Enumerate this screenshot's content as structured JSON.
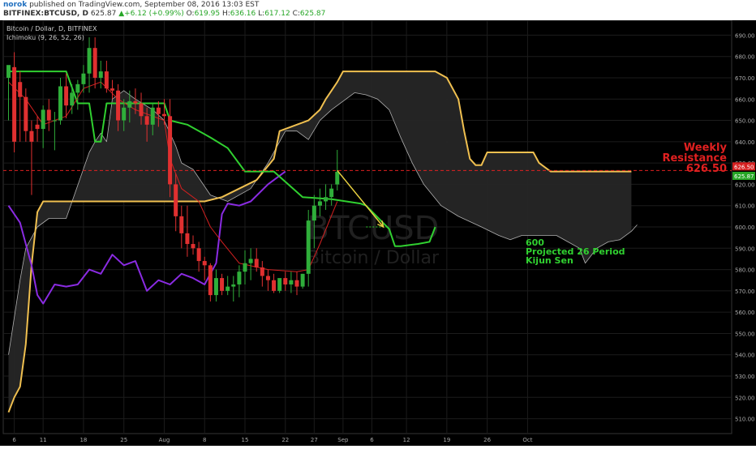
{
  "header": {
    "user": "norok",
    "published": "published on TradingView.com, September 08, 2016 13:03 EST",
    "symbol": "BITFINEX:BTCUSD, D",
    "last": "625.87",
    "change": "+6.12 (+0.99%)",
    "ohlc": [
      {
        "k": "O:",
        "v": "619.95"
      },
      {
        "k": "H:",
        "v": "636.16"
      },
      {
        "k": "L:",
        "v": "617.12"
      },
      {
        "k": "C:",
        "v": "625.87"
      }
    ]
  },
  "legend": {
    "title": "Bitcoin / Dollar, D, BITFINEX",
    "indicator": "Ichimoku (9, 26, 52, 26)"
  },
  "watermark": {
    "symbol": "BTCUSD",
    "name": "Bitcoin / Dollar"
  },
  "price_tags": [
    {
      "value": 626.5,
      "label": "626.50",
      "color": "#d42020"
    },
    {
      "value": 625.87,
      "label": "625.87",
      "color": "#26a626"
    }
  ],
  "annotations": {
    "resistance": [
      "Weekly",
      "Resistance",
      "626.50"
    ],
    "kijun": [
      "600",
      "Projected 26 Period",
      "Kijun Sen"
    ]
  },
  "colors": {
    "up": "#2fae3a",
    "down": "#e03030",
    "tenkan": "#d42020",
    "kijun": "#30d030",
    "chikou": "#8a2be2",
    "senkou_b": "#f0c050",
    "cloud_fill": "#262626",
    "resistance": "#e02020",
    "arrow": "#e8d040"
  },
  "chart_data": {
    "type": "candlestick",
    "x_axis_labels": [
      "6",
      "11",
      "18",
      "25",
      "Aug",
      "8",
      "15",
      "22",
      "27",
      "Sep",
      "6",
      "12",
      "19",
      "26",
      "Oct"
    ],
    "y_ticks": [
      510,
      520,
      530,
      540,
      550,
      560,
      570,
      580,
      590,
      600,
      610,
      620,
      630,
      640,
      650,
      660,
      670,
      680,
      690
    ],
    "ylim": [
      503,
      697
    ],
    "start_date": "2016-07-05",
    "candles": [
      {
        "o": 670,
        "h": 675,
        "l": 650,
        "c": 676
      },
      {
        "o": 675,
        "h": 682,
        "l": 635,
        "c": 640
      },
      {
        "o": 668,
        "h": 673,
        "l": 640,
        "c": 661
      },
      {
        "o": 661,
        "h": 665,
        "l": 640,
        "c": 645
      },
      {
        "o": 645,
        "h": 650,
        "l": 615,
        "c": 640
      },
      {
        "o": 648,
        "h": 652,
        "l": 640,
        "c": 646
      },
      {
        "o": 646,
        "h": 657,
        "l": 637,
        "c": 655
      },
      {
        "o": 655,
        "h": 660,
        "l": 645,
        "c": 650
      },
      {
        "o": 650,
        "h": 654,
        "l": 636,
        "c": 650
      },
      {
        "o": 650,
        "h": 670,
        "l": 648,
        "c": 666
      },
      {
        "o": 666,
        "h": 672,
        "l": 651,
        "c": 657
      },
      {
        "o": 657,
        "h": 667,
        "l": 653,
        "c": 663
      },
      {
        "o": 663,
        "h": 669,
        "l": 655,
        "c": 667
      },
      {
        "o": 667,
        "h": 676,
        "l": 663,
        "c": 672
      },
      {
        "o": 672,
        "h": 689,
        "l": 663,
        "c": 684
      },
      {
        "o": 684,
        "h": 689,
        "l": 665,
        "c": 670
      },
      {
        "o": 670,
        "h": 678,
        "l": 665,
        "c": 673
      },
      {
        "o": 673,
        "h": 678,
        "l": 663,
        "c": 665
      },
      {
        "o": 665,
        "h": 669,
        "l": 660,
        "c": 664
      },
      {
        "o": 664,
        "h": 667,
        "l": 645,
        "c": 650
      },
      {
        "o": 650,
        "h": 660,
        "l": 645,
        "c": 656
      },
      {
        "o": 656,
        "h": 664,
        "l": 649,
        "c": 659
      },
      {
        "o": 659,
        "h": 665,
        "l": 653,
        "c": 658
      },
      {
        "o": 658,
        "h": 663,
        "l": 648,
        "c": 652
      },
      {
        "o": 652,
        "h": 656,
        "l": 640,
        "c": 648
      },
      {
        "o": 648,
        "h": 658,
        "l": 643,
        "c": 656
      },
      {
        "o": 656,
        "h": 659,
        "l": 647,
        "c": 653
      },
      {
        "o": 653,
        "h": 660,
        "l": 648,
        "c": 652
      },
      {
        "o": 652,
        "h": 660,
        "l": 614,
        "c": 620
      },
      {
        "o": 620,
        "h": 625,
        "l": 598,
        "c": 605
      },
      {
        "o": 605,
        "h": 610,
        "l": 590,
        "c": 597
      },
      {
        "o": 597,
        "h": 610,
        "l": 586,
        "c": 592
      },
      {
        "o": 592,
        "h": 596,
        "l": 587,
        "c": 590
      },
      {
        "o": 590,
        "h": 593,
        "l": 579,
        "c": 584
      },
      {
        "o": 584,
        "h": 586,
        "l": 575,
        "c": 582
      },
      {
        "o": 582,
        "h": 583,
        "l": 565,
        "c": 568
      },
      {
        "o": 568,
        "h": 580,
        "l": 565,
        "c": 576
      },
      {
        "o": 576,
        "h": 578,
        "l": 568,
        "c": 570
      },
      {
        "o": 570,
        "h": 577,
        "l": 568,
        "c": 572
      },
      {
        "o": 572,
        "h": 577,
        "l": 565,
        "c": 573
      },
      {
        "o": 573,
        "h": 582,
        "l": 567,
        "c": 579
      },
      {
        "o": 579,
        "h": 589,
        "l": 573,
        "c": 583
      },
      {
        "o": 583,
        "h": 590,
        "l": 575,
        "c": 585
      },
      {
        "o": 585,
        "h": 590,
        "l": 579,
        "c": 581
      },
      {
        "o": 581,
        "h": 584,
        "l": 572,
        "c": 577
      },
      {
        "o": 577,
        "h": 580,
        "l": 570,
        "c": 575
      },
      {
        "o": 575,
        "h": 578,
        "l": 569,
        "c": 570
      },
      {
        "o": 570,
        "h": 575,
        "l": 569,
        "c": 576
      },
      {
        "o": 576,
        "h": 579,
        "l": 570,
        "c": 573
      },
      {
        "o": 573,
        "h": 579,
        "l": 569,
        "c": 575
      },
      {
        "o": 575,
        "h": 579,
        "l": 568,
        "c": 572
      },
      {
        "o": 572,
        "h": 578,
        "l": 571,
        "c": 578
      },
      {
        "o": 578,
        "h": 608,
        "l": 572,
        "c": 603
      },
      {
        "o": 603,
        "h": 615,
        "l": 590,
        "c": 610
      },
      {
        "o": 610,
        "h": 618,
        "l": 605,
        "c": 612
      },
      {
        "o": 612,
        "h": 620,
        "l": 608,
        "c": 614
      },
      {
        "o": 614,
        "h": 620,
        "l": 610,
        "c": 618
      },
      {
        "o": 619.95,
        "h": 636.16,
        "l": 617.12,
        "c": 625.87
      }
    ],
    "tenkan_sen": [
      [
        0,
        668
      ],
      [
        3,
        660
      ],
      [
        6,
        648
      ],
      [
        10,
        652
      ],
      [
        13,
        665
      ],
      [
        16,
        668
      ],
      [
        19,
        660
      ],
      [
        22,
        655
      ],
      [
        25,
        652
      ],
      [
        27,
        650
      ],
      [
        28,
        632
      ],
      [
        30,
        618
      ],
      [
        33,
        612
      ],
      [
        35,
        600
      ],
      [
        37,
        593
      ],
      [
        40,
        583
      ],
      [
        45,
        580
      ],
      [
        50,
        579
      ],
      [
        52,
        580
      ],
      [
        54,
        592
      ],
      [
        57,
        612
      ]
    ],
    "kijun_sen": [
      [
        0,
        673
      ],
      [
        10,
        673
      ],
      [
        12,
        658
      ],
      [
        14,
        658
      ],
      [
        15,
        640
      ],
      [
        16,
        640
      ],
      [
        17,
        658
      ],
      [
        27,
        658
      ],
      [
        28,
        650
      ],
      [
        31,
        648
      ],
      [
        35,
        642
      ],
      [
        38,
        637
      ],
      [
        41,
        626
      ],
      [
        46,
        626
      ],
      [
        51,
        614
      ],
      [
        56,
        613
      ],
      [
        61,
        611
      ],
      [
        62,
        610
      ],
      [
        66,
        599
      ],
      [
        67,
        591
      ],
      [
        68,
        591
      ],
      [
        71,
        592
      ],
      [
        73,
        593
      ],
      [
        74,
        600
      ]
    ],
    "chikou_span": [
      [
        0,
        610
      ],
      [
        2,
        602
      ],
      [
        4,
        582
      ],
      [
        5,
        568
      ],
      [
        6,
        564
      ],
      [
        8,
        573
      ],
      [
        10,
        572
      ],
      [
        12,
        573
      ],
      [
        14,
        580
      ],
      [
        16,
        578
      ],
      [
        18,
        587
      ],
      [
        20,
        582
      ],
      [
        22,
        584
      ],
      [
        24,
        570
      ],
      [
        26,
        575
      ],
      [
        28,
        573
      ],
      [
        30,
        578
      ],
      [
        32,
        576
      ],
      [
        34,
        573
      ],
      [
        36,
        583
      ],
      [
        37,
        606
      ],
      [
        38,
        611
      ],
      [
        40,
        610
      ],
      [
        42,
        612
      ],
      [
        45,
        620
      ],
      [
        48,
        626
      ]
    ],
    "senkou_a": [
      [
        0,
        540
      ],
      [
        2,
        575
      ],
      [
        3,
        590
      ],
      [
        5,
        600
      ],
      [
        7,
        604
      ],
      [
        10,
        604
      ],
      [
        14,
        635
      ],
      [
        15,
        640
      ],
      [
        16,
        644
      ],
      [
        17,
        640
      ],
      [
        18,
        660
      ],
      [
        20,
        664
      ],
      [
        22,
        660
      ],
      [
        25,
        655
      ],
      [
        27,
        650
      ],
      [
        29,
        638
      ],
      [
        30,
        630
      ],
      [
        32,
        627
      ],
      [
        33,
        623
      ],
      [
        35,
        615
      ],
      [
        38,
        612
      ],
      [
        42,
        618
      ],
      [
        45,
        630
      ],
      [
        47,
        640
      ],
      [
        48,
        645
      ],
      [
        50,
        645
      ],
      [
        52,
        641
      ],
      [
        54,
        650
      ],
      [
        56,
        655
      ],
      [
        60,
        663
      ],
      [
        62,
        662
      ],
      [
        64,
        660
      ],
      [
        66,
        655
      ],
      [
        68,
        642
      ],
      [
        70,
        630
      ],
      [
        72,
        620
      ],
      [
        75,
        610
      ],
      [
        78,
        605
      ],
      [
        82,
        600
      ],
      [
        85,
        596
      ],
      [
        87,
        594
      ],
      [
        89,
        596
      ],
      [
        92,
        596
      ],
      [
        95,
        596
      ],
      [
        97,
        593
      ],
      [
        99,
        590
      ],
      [
        100,
        583
      ],
      [
        102,
        590
      ],
      [
        104,
        593
      ],
      [
        106,
        594
      ],
      [
        108,
        598
      ],
      [
        109,
        601
      ]
    ],
    "senkou_b": [
      [
        0,
        513
      ],
      [
        1,
        520
      ],
      [
        2,
        525
      ],
      [
        3,
        545
      ],
      [
        4,
        582
      ],
      [
        5,
        607
      ],
      [
        6,
        612
      ],
      [
        34,
        612
      ],
      [
        37,
        614
      ],
      [
        40,
        618
      ],
      [
        43,
        622
      ],
      [
        46,
        632
      ],
      [
        47,
        645
      ],
      [
        50,
        648
      ],
      [
        52,
        650
      ],
      [
        54,
        655
      ],
      [
        55,
        660
      ],
      [
        56,
        664
      ],
      [
        57,
        668
      ],
      [
        58,
        673
      ],
      [
        74,
        673
      ],
      [
        76,
        670
      ],
      [
        78,
        660
      ],
      [
        79,
        645
      ],
      [
        80,
        632
      ],
      [
        81,
        629
      ],
      [
        82,
        629
      ],
      [
        83,
        635
      ],
      [
        87,
        635
      ],
      [
        91,
        635
      ],
      [
        92,
        630
      ],
      [
        94,
        626
      ],
      [
        105,
        626
      ],
      [
        108,
        626
      ]
    ],
    "resistance_level": 626.5,
    "projection_arrow": [
      [
        57,
        626.5
      ],
      [
        65,
        600
      ]
    ],
    "projection_marker": [
      [
        62,
        600
      ],
      [
        66,
        600
      ]
    ]
  }
}
